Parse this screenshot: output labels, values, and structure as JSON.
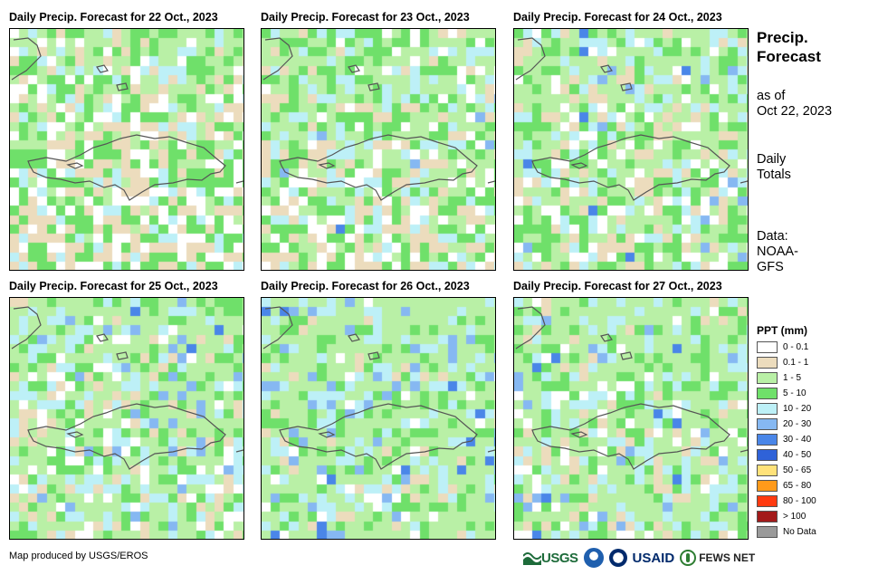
{
  "panels": [
    {
      "title": "Daily Precip. Forecast for 22 Oct., 2023",
      "seed": 11,
      "wet": 0.0
    },
    {
      "title": "Daily Precip. Forecast for 23 Oct., 2023",
      "seed": 23,
      "wet": 0.25
    },
    {
      "title": "Daily Precip. Forecast for 24 Oct., 2023",
      "seed": 37,
      "wet": 0.4
    },
    {
      "title": "Daily Precip. Forecast for 25 Oct., 2023",
      "seed": 41,
      "wet": 0.55
    },
    {
      "title": "Daily Precip. Forecast for 26 Oct., 2023",
      "seed": 53,
      "wet": 0.8
    },
    {
      "title": "Daily Precip. Forecast for 27 Oct., 2023",
      "seed": 67,
      "wet": 0.6
    }
  ],
  "side": {
    "title_line1": "Precip.",
    "title_line2": "Forecast",
    "asof_line1": "as of",
    "asof_line2": "Oct 22, 2023",
    "totals_line1": "Daily",
    "totals_line2": "Totals",
    "data_line1": "Data:",
    "data_line2": "NOAA-",
    "data_line3": "GFS"
  },
  "legend": {
    "title": "PPT (mm)",
    "items": [
      {
        "label": "0 - 0.1",
        "color": "#ffffff"
      },
      {
        "label": "0.1 - 1",
        "color": "#ecdcbd"
      },
      {
        "label": "1 - 5",
        "color": "#b9f0a6"
      },
      {
        "label": "5 - 10",
        "color": "#6fe06a"
      },
      {
        "label": "10 - 20",
        "color": "#bdf0f7"
      },
      {
        "label": "20 - 30",
        "color": "#86b8f2"
      },
      {
        "label": "30 - 40",
        "color": "#4a86e8"
      },
      {
        "label": "40 - 50",
        "color": "#2f62d8"
      },
      {
        "label": "50 - 65",
        "color": "#ffe27a"
      },
      {
        "label": "65 - 80",
        "color": "#ff9a1a"
      },
      {
        "label": "80 - 100",
        "color": "#ff3a10"
      },
      {
        "label": "> 100",
        "color": "#a31a1a"
      },
      {
        "label": "No Data",
        "color": "#9a9a9a"
      }
    ]
  },
  "credit": "Map produced by USGS/EROS",
  "logos": {
    "usgs": "USGS",
    "usaid": "USAID",
    "fews": "FEWS NET"
  }
}
